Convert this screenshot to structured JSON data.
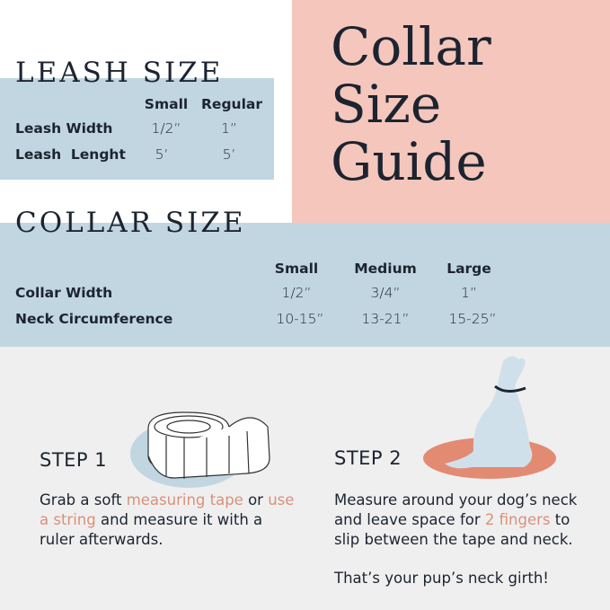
{
  "title": {
    "line1": "Collar",
    "line2": "Size",
    "line3": "Guide"
  },
  "leash": {
    "title": "LEASH SIZE",
    "headers": [
      "Small",
      "Regular"
    ],
    "rows": [
      {
        "label": "Leash Width",
        "values": [
          "1/2”",
          "1”"
        ]
      },
      {
        "label": "Leash  Lenght",
        "values": [
          "5’",
          "5’"
        ]
      }
    ]
  },
  "collar": {
    "title": "COLLAR SIZE",
    "headers": [
      "Small",
      "Medium",
      "Large"
    ],
    "rows": [
      {
        "label": "Collar Width",
        "values": [
          "1/2”",
          "3/4”",
          "1”"
        ]
      },
      {
        "label": "Neck Circumference",
        "values": [
          "10-15”",
          "13-21”",
          "15-25”"
        ]
      }
    ]
  },
  "step1": {
    "title": "STEP 1",
    "t1": "Grab a soft ",
    "a1": "measuring tape",
    "t2": " or ",
    "a2": "use a string",
    "t3": " and measure it with a ruler afterwards."
  },
  "step2": {
    "title": "STEP 2",
    "t1": "Measure around your dog’s neck and leave space for ",
    "a1": "2 fingers",
    "t2": " to slip between the tape and neck.",
    "closing": "That’s your pup’s neck girth!"
  },
  "colors": {
    "pink": "#f5c6bc",
    "blue": "#c1d6e0",
    "grey": "#efefef",
    "accent": "#d9907a",
    "oval": "#e38a72"
  },
  "icons": [
    "measuring-tape-icon",
    "dog-silhouette-icon"
  ]
}
